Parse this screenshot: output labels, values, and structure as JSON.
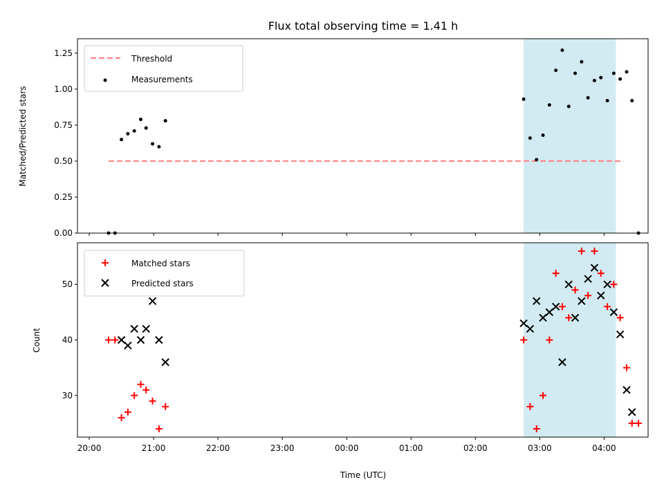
{
  "chart_data": [
    {
      "type": "scatter",
      "title": "Flux total observing time = 1.41 h",
      "xlabel": "",
      "ylabel": "Matched/Predicted stars",
      "ylim": [
        0,
        1.35
      ],
      "yticks": [
        "0.00",
        "0.25",
        "0.50",
        "0.75",
        "1.00",
        "1.25"
      ],
      "ytick_values": [
        0,
        0.25,
        0.5,
        0.75,
        1.0,
        1.25
      ],
      "legend": "top-left",
      "shaded_region": {
        "x_start": "02:45",
        "x_end": "04:11",
        "color": "#add8e6"
      },
      "threshold": {
        "name": "Threshold",
        "value": 0.5,
        "x_start": "20:18",
        "x_end": "04:18",
        "color": "#ff7f7f"
      },
      "series": [
        {
          "name": "Measurements",
          "color": "#000000",
          "points": [
            [
              "20:18",
              0.0
            ],
            [
              "20:24",
              0.0
            ],
            [
              "20:30",
              0.65
            ],
            [
              "20:36",
              0.69
            ],
            [
              "20:42",
              0.71
            ],
            [
              "20:48",
              0.79
            ],
            [
              "20:53",
              0.73
            ],
            [
              "20:59",
              0.62
            ],
            [
              "21:05",
              0.6
            ],
            [
              "21:11",
              0.78
            ],
            [
              "02:45",
              0.93
            ],
            [
              "02:51",
              0.66
            ],
            [
              "02:57",
              0.51
            ],
            [
              "03:03",
              0.68
            ],
            [
              "03:09",
              0.89
            ],
            [
              "03:15",
              1.13
            ],
            [
              "03:21",
              1.27
            ],
            [
              "03:27",
              0.88
            ],
            [
              "03:33",
              1.11
            ],
            [
              "03:39",
              1.19
            ],
            [
              "03:45",
              0.94
            ],
            [
              "03:51",
              1.06
            ],
            [
              "03:57",
              1.08
            ],
            [
              "04:03",
              0.92
            ],
            [
              "04:09",
              1.11
            ],
            [
              "04:15",
              1.07
            ],
            [
              "04:21",
              1.12
            ],
            [
              "04:26",
              0.92
            ],
            [
              "04:32",
              0.0
            ]
          ]
        }
      ]
    },
    {
      "type": "scatter",
      "title": "",
      "xlabel": "Time (UTC)",
      "ylabel": "Count",
      "ylim": [
        22.5,
        57.5
      ],
      "yticks": [
        "30",
        "40",
        "50"
      ],
      "ytick_values": [
        30,
        40,
        50
      ],
      "xticks": [
        "20:00",
        "21:00",
        "22:00",
        "23:00",
        "00:00",
        "01:00",
        "02:00",
        "03:00",
        "04:00"
      ],
      "legend": "top-left",
      "shaded_region": {
        "x_start": "02:45",
        "x_end": "04:11",
        "color": "#add8e6"
      },
      "series": [
        {
          "name": "Matched stars",
          "color": "#ff0000",
          "marker": "plus",
          "points": [
            [
              "20:18",
              40
            ],
            [
              "20:24",
              40
            ],
            [
              "20:30",
              26
            ],
            [
              "20:36",
              27
            ],
            [
              "20:42",
              30
            ],
            [
              "20:48",
              32
            ],
            [
              "20:53",
              31
            ],
            [
              "20:59",
              29
            ],
            [
              "21:05",
              24
            ],
            [
              "21:11",
              28
            ],
            [
              "02:45",
              40
            ],
            [
              "02:51",
              28
            ],
            [
              "02:57",
              24
            ],
            [
              "03:03",
              30
            ],
            [
              "03:09",
              40
            ],
            [
              "03:15",
              52
            ],
            [
              "03:21",
              46
            ],
            [
              "03:27",
              44
            ],
            [
              "03:33",
              49
            ],
            [
              "03:39",
              56
            ],
            [
              "03:45",
              48
            ],
            [
              "03:51",
              56
            ],
            [
              "03:57",
              52
            ],
            [
              "04:03",
              46
            ],
            [
              "04:09",
              50
            ],
            [
              "04:15",
              44
            ],
            [
              "04:21",
              35
            ],
            [
              "04:26",
              25
            ],
            [
              "04:32",
              25
            ]
          ]
        },
        {
          "name": "Predicted stars",
          "color": "#000000",
          "marker": "x",
          "points": [
            [
              "20:30",
              40
            ],
            [
              "20:36",
              39
            ],
            [
              "20:42",
              42
            ],
            [
              "20:48",
              40
            ],
            [
              "20:53",
              42
            ],
            [
              "20:59",
              47
            ],
            [
              "21:05",
              40
            ],
            [
              "21:11",
              36
            ],
            [
              "02:45",
              43
            ],
            [
              "02:51",
              42
            ],
            [
              "02:57",
              47
            ],
            [
              "03:03",
              44
            ],
            [
              "03:09",
              45
            ],
            [
              "03:15",
              46
            ],
            [
              "03:21",
              36
            ],
            [
              "03:27",
              50
            ],
            [
              "03:33",
              44
            ],
            [
              "03:39",
              47
            ],
            [
              "03:45",
              51
            ],
            [
              "03:51",
              53
            ],
            [
              "03:57",
              48
            ],
            [
              "04:03",
              50
            ],
            [
              "04:09",
              45
            ],
            [
              "04:15",
              41
            ],
            [
              "04:21",
              31
            ],
            [
              "04:26",
              27
            ]
          ]
        }
      ]
    }
  ]
}
